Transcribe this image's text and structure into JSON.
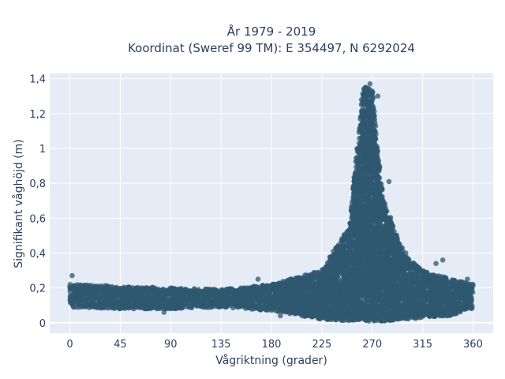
{
  "chart_data": {
    "type": "scatter",
    "title_line1": "År 1979 - 2019",
    "title_line2": "Koordinat (Sweref 99 TM): E 354497, N 6292024",
    "xlabel": "Vågriktning (grader)",
    "ylabel": "Signifikant våghöjd (m)",
    "xlim": [
      -18,
      378
    ],
    "ylim": [
      -0.06,
      1.43
    ],
    "x_ticks": [
      0,
      45,
      90,
      135,
      180,
      225,
      270,
      315,
      360
    ],
    "x_tick_labels": [
      "0",
      "45",
      "90",
      "135",
      "180",
      "225",
      "270",
      "315",
      "360"
    ],
    "y_ticks": [
      0,
      0.2,
      0.4,
      0.6,
      0.8,
      1.0,
      1.2,
      1.4
    ],
    "y_tick_labels": [
      "0",
      "0,2",
      "0,4",
      "0,6",
      "0,8",
      "1",
      "1,2",
      "1,4"
    ],
    "grid": true,
    "marker_color": "#2f5870",
    "background_color": "#e5ecf6",
    "series": [
      {
        "description": "dense band of low waves across all directions",
        "envelope": [
          {
            "x": 0,
            "ymin": 0.09,
            "ymax": 0.22
          },
          {
            "x": 45,
            "ymin": 0.08,
            "ymax": 0.21
          },
          {
            "x": 90,
            "ymin": 0.08,
            "ymax": 0.2
          },
          {
            "x": 135,
            "ymin": 0.09,
            "ymax": 0.19
          },
          {
            "x": 180,
            "ymin": 0.07,
            "ymax": 0.22
          },
          {
            "x": 225,
            "ymin": 0.02,
            "ymax": 0.3
          },
          {
            "x": 250,
            "ymin": 0.01,
            "ymax": 0.55
          },
          {
            "x": 262,
            "ymin": 0.01,
            "ymax": 1.36
          },
          {
            "x": 270,
            "ymin": 0.01,
            "ymax": 1.33
          },
          {
            "x": 280,
            "ymin": 0.01,
            "ymax": 0.7
          },
          {
            "x": 300,
            "ymin": 0.02,
            "ymax": 0.38
          },
          {
            "x": 315,
            "ymin": 0.03,
            "ymax": 0.3
          },
          {
            "x": 340,
            "ymin": 0.04,
            "ymax": 0.25
          },
          {
            "x": 360,
            "ymin": 0.08,
            "ymax": 0.22
          }
        ]
      }
    ],
    "sample_points": [
      {
        "x": 2,
        "y": 0.27
      },
      {
        "x": 268,
        "y": 1.37
      },
      {
        "x": 264,
        "y": 1.35
      },
      {
        "x": 275,
        "y": 1.3
      },
      {
        "x": 285,
        "y": 0.81
      },
      {
        "x": 327,
        "y": 0.34
      },
      {
        "x": 333,
        "y": 0.36
      },
      {
        "x": 168,
        "y": 0.25
      },
      {
        "x": 245,
        "y": 0.5
      },
      {
        "x": 300,
        "y": 0.4
      },
      {
        "x": 355,
        "y": 0.25
      },
      {
        "x": 188,
        "y": 0.04
      },
      {
        "x": 84,
        "y": 0.06
      }
    ]
  }
}
